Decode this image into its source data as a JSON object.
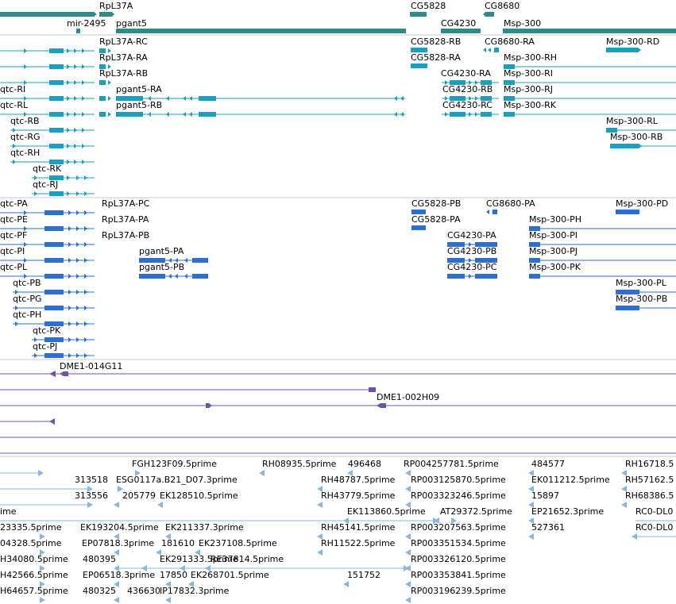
{
  "colors": {
    "gene": "#2e8b88",
    "transcript": "#1a9fbf",
    "translation": "#2b6fd1",
    "est": "#6f52a8",
    "cdna": "#86b8dc",
    "divider": "#c8c8c8"
  },
  "gene_track": {
    "labels": [
      "RpL37A",
      "mir-2495",
      "pgant5",
      "CG5828",
      "CG4230",
      "CG8680",
      "Msp-300"
    ]
  },
  "transcript_track": {
    "labels": [
      "RpL37A-RC",
      "RpL37A-RA",
      "RpL37A-RB",
      "qtc-RI",
      "qtc-RL",
      "qtc-RB",
      "qtc-RG",
      "qtc-RH",
      "qtc-RK",
      "qtc-RJ",
      "pgant5-RA",
      "pgant5-RB",
      "CG5828-RB",
      "CG5828-RA",
      "CG8680-RA",
      "CG4230-RA",
      "CG4230-RB",
      "CG4230-RC",
      "Msp-300-RD",
      "Msp-300-RH",
      "Msp-300-RI",
      "Msp-300-RJ",
      "Msp-300-RK",
      "Msp-300-RL",
      "Msp-300-RB"
    ]
  },
  "protein_track": {
    "labels": [
      "qtc-PA",
      "qtc-PE",
      "qtc-PF",
      "qtc-PI",
      "qtc-PL",
      "qtc-PB",
      "qtc-PG",
      "qtc-PH",
      "qtc-PK",
      "qtc-PJ",
      "RpL37A-PC",
      "RpL37A-PA",
      "RpL37A-PB",
      "pgant5-PA",
      "pgant5-PB",
      "CG5828-PB",
      "CG5828-PA",
      "CG8680-PA",
      "CG4230-PA",
      "CG4230-PB",
      "CG4230-PC",
      "Msp-300-PD",
      "Msp-300-PH",
      "Msp-300-PI",
      "Msp-300-PJ",
      "Msp-300-PK",
      "Msp-300-PL",
      "Msp-300-PB"
    ]
  },
  "est_track": {
    "labels": [
      "DME1-014G11",
      "DME1-002H09"
    ]
  },
  "cdna_track": {
    "labels": [
      "FGH123F09.5prime",
      "RH08935.5prime",
      "496468",
      "RP004257781.5prime",
      "484577",
      "RH16718.5",
      "313518",
      "ESG0117a.B21_D07.3prime",
      "RH48787.5prime",
      "RP003125870.5prime",
      "EK011212.5prime",
      "RH57162.5",
      "313556",
      "205779",
      "EK128510.5prime",
      "RH43779.5prime",
      "RP003323246.5prime",
      "15897",
      "RH68386.5",
      "ime",
      "EK113860.5prime",
      "AT29372.5prime",
      "EP21652.3prime",
      "RC0-DL0",
      "23335.5prime",
      "EK193204.5prime",
      "EK211337.3prime",
      "RH45141.5prime",
      "RP003207563.5prime",
      "527361",
      "RC0-DL0",
      "04328.5prime",
      "EP07818.3prime",
      "181610",
      "EK237108.5prime",
      "RH11522.5prime",
      "RP003351534.5prime",
      "H34080.5prime",
      "480395",
      "EK291333.5prime",
      "RE37814.5prime",
      "RP003326120.5prime",
      "EP06518.3prime",
      "17850",
      "EK268701.5prime",
      "151752",
      "RP003353841.5prime",
      "H42566.5prime",
      "H64657.5prime",
      "480325",
      "436630",
      "IP17832.3prime",
      "RP003196239.5prime"
    ]
  }
}
